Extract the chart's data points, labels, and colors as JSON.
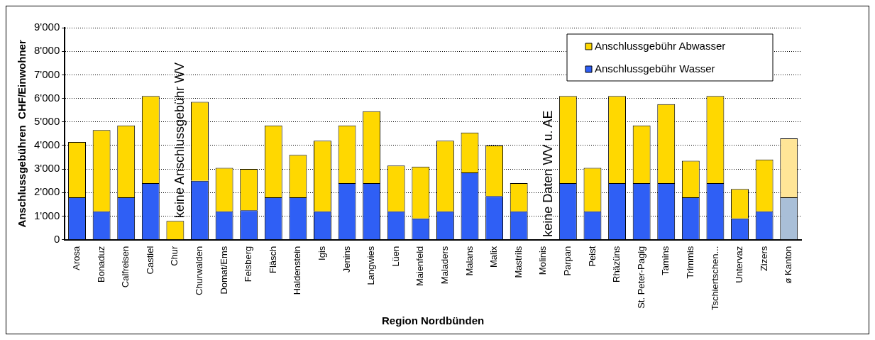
{
  "chart_data": {
    "type": "bar",
    "stacked": true,
    "xlabel": "Region Nordbünden",
    "ylabel": "Anschlussgebühren  CHF/Einwohner",
    "categories": [
      "Arosa",
      "Bonaduz",
      "Calfreisen",
      "Castiel",
      "Chur",
      "Churwalden",
      "Domat/Ems",
      "Felsberg",
      "Fläsch",
      "Haldenstein",
      "Igis",
      "Jenins",
      "Langwies",
      "Lüen",
      "Maienfeld",
      "Maladers",
      "Malans",
      "Malix",
      "Mastrils",
      "Molinis",
      "Parpan",
      "Peist",
      "Rhäzüns",
      "St. Peter-Pagig",
      "Tamins",
      "Trimmis",
      "Tschiertschen...",
      "Untervaz",
      "Zizers",
      "ø Kanton"
    ],
    "series": [
      {
        "name": "Anschlussgebühr Wasser",
        "color": "#2f5ff5",
        "colors": [
          "#2f5ff5",
          "#2f5ff5",
          "#2f5ff5",
          "#2f5ff5",
          "#2f5ff5",
          "#2f5ff5",
          "#2f5ff5",
          "#2f5ff5",
          "#2f5ff5",
          "#2f5ff5",
          "#2f5ff5",
          "#2f5ff5",
          "#2f5ff5",
          "#2f5ff5",
          "#2f5ff5",
          "#2f5ff5",
          "#2f5ff5",
          "#2f5ff5",
          "#2f5ff5",
          "#2f5ff5",
          "#2f5ff5",
          "#2f5ff5",
          "#2f5ff5",
          "#2f5ff5",
          "#2f5ff5",
          "#2f5ff5",
          "#2f5ff5",
          "#2f5ff5",
          "#2f5ff5",
          "#a9bfd8"
        ],
        "values": [
          1800,
          1200,
          1800,
          2400,
          0,
          2500,
          1200,
          1250,
          1800,
          1800,
          1200,
          2400,
          2400,
          1200,
          900,
          1200,
          2850,
          1850,
          1200,
          null,
          2400,
          1200,
          2400,
          2400,
          2400,
          1800,
          2400,
          900,
          1200,
          1800
        ]
      },
      {
        "name": "Anschlussgebühr Abwasser",
        "color": "#ffd800",
        "colors": [
          "#ffd800",
          "#ffd800",
          "#ffd800",
          "#ffd800",
          "#ffd800",
          "#ffd800",
          "#ffd800",
          "#ffd800",
          "#ffd800",
          "#ffd800",
          "#ffd800",
          "#ffd800",
          "#ffd800",
          "#ffd800",
          "#ffd800",
          "#ffd800",
          "#ffd800",
          "#ffd800",
          "#ffd800",
          "#ffd800",
          "#ffd800",
          "#ffd800",
          "#ffd800",
          "#ffd800",
          "#ffd800",
          "#ffd800",
          "#ffd800",
          "#ffd800",
          "#ffd800",
          "#ffe597"
        ],
        "values": [
          2350,
          3450,
          3050,
          3700,
          800,
          3350,
          1850,
          1750,
          3050,
          1800,
          3000,
          2450,
          3050,
          1950,
          2200,
          3000,
          1700,
          2150,
          1200,
          null,
          3700,
          1850,
          3700,
          2450,
          3350,
          1550,
          3700,
          1250,
          2200,
          2500
        ]
      }
    ],
    "ylim": [
      0,
      9000
    ],
    "yticks": [
      {
        "value": 0,
        "label": "0"
      },
      {
        "value": 1000,
        "label": "1'000"
      },
      {
        "value": 2000,
        "label": "2'000"
      },
      {
        "value": 3000,
        "label": "3'000"
      },
      {
        "value": 4000,
        "label": "4'000"
      },
      {
        "value": 5000,
        "label": "5'000"
      },
      {
        "value": 6000,
        "label": "6'000"
      },
      {
        "value": 7000,
        "label": "7'000"
      },
      {
        "value": 8000,
        "label": "8'000"
      },
      {
        "value": 9000,
        "label": "9'000"
      }
    ],
    "grid": "y",
    "legend": "top right",
    "annotations": [
      "keine Anschlussgebühr WV",
      "keine Daten WV u. AE"
    ]
  }
}
